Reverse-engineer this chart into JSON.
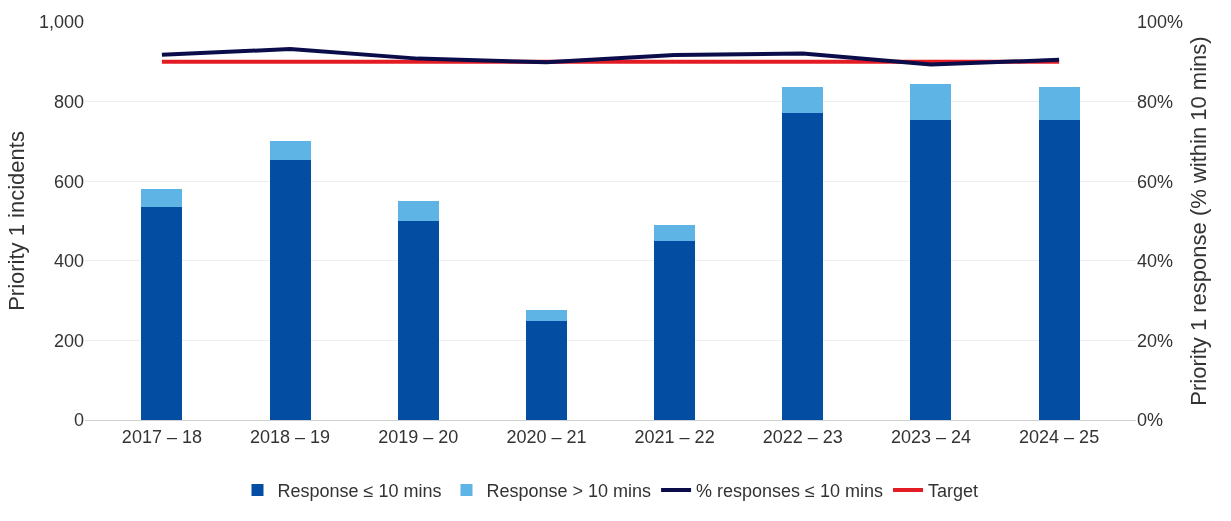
{
  "chart_data": {
    "type": "bar",
    "stacked": true,
    "ylabel": "Priority 1 incidents",
    "y2label": "Priority 1 response (% within 10 mins)",
    "categories": [
      "2017 – 18",
      "2018 – 19",
      "2019 – 20",
      "2020 – 21",
      "2021 – 22",
      "2022 – 23",
      "2023 – 24",
      "2024 – 25"
    ],
    "series": [
      {
        "name": "Response ≤ 10 mins",
        "color": "#034ea2",
        "values": [
          535,
          654,
          501,
          249,
          449,
          771,
          754,
          755
        ]
      },
      {
        "name": "Response > 10 mins",
        "color": "#5eb4e4",
        "values": [
          46,
          47,
          50,
          27,
          42,
          66,
          91,
          81
        ]
      },
      {
        "name": "% responses ≤ 10 mins",
        "type": "line",
        "axis": "y2",
        "color": "#0b0c4a",
        "values": [
          91.8,
          93.2,
          90.8,
          89.9,
          91.7,
          92.1,
          89.3,
          90.5
        ]
      },
      {
        "name": "Target",
        "type": "line",
        "axis": "y2",
        "color": "#e31b23",
        "values": [
          90,
          90,
          90,
          90,
          90,
          90,
          90,
          90
        ]
      }
    ],
    "ylim": [
      0,
      1000
    ],
    "yticks": [
      0,
      200,
      400,
      600,
      800,
      {
        "value": 1000,
        "label": "1,000"
      }
    ],
    "y2lim": [
      0,
      100
    ],
    "y2ticks": [
      {
        "value": 0,
        "label": "0%"
      },
      {
        "value": 20,
        "label": "20%"
      },
      {
        "value": 40,
        "label": "40%"
      },
      {
        "value": 60,
        "label": "60%"
      },
      {
        "value": 80,
        "label": "80%"
      },
      {
        "value": 100,
        "label": "100%"
      }
    ],
    "grid": "y",
    "legend": "bottom",
    "marker": "none"
  }
}
